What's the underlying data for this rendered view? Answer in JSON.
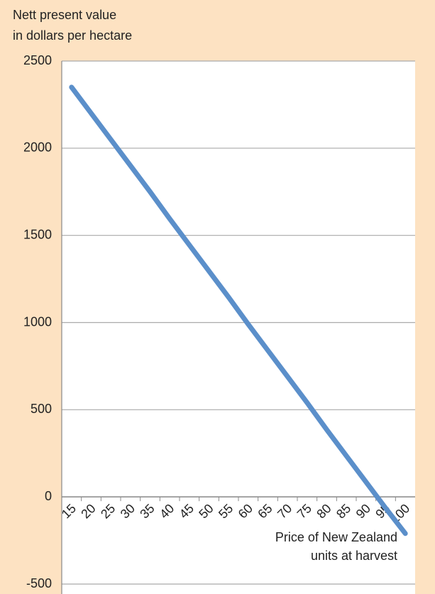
{
  "chart_data": {
    "type": "line",
    "y_label": [
      "Nett present value",
      "in dollars per hectare"
    ],
    "x_label": [
      "Price of New Zealand",
      "units at harvest"
    ],
    "categories": [
      "15",
      "20",
      "25",
      "30",
      "35",
      "40",
      "45",
      "50",
      "55",
      "60",
      "65",
      "70",
      "75",
      "80",
      "85",
      "90",
      "95",
      "100"
    ],
    "series": [
      {
        "color": "#5b8fca",
        "values": [
          2350,
          2200,
          2050,
          1900,
          1750,
          1595,
          1445,
          1295,
          1145,
          990,
          840,
          690,
          540,
          385,
          235,
          85,
          -65,
          -210
        ]
      }
    ],
    "ylim": [
      -500,
      2500
    ],
    "yticks": [
      -500,
      0,
      500,
      1000,
      1500,
      2000,
      2500
    ],
    "grid": true
  }
}
